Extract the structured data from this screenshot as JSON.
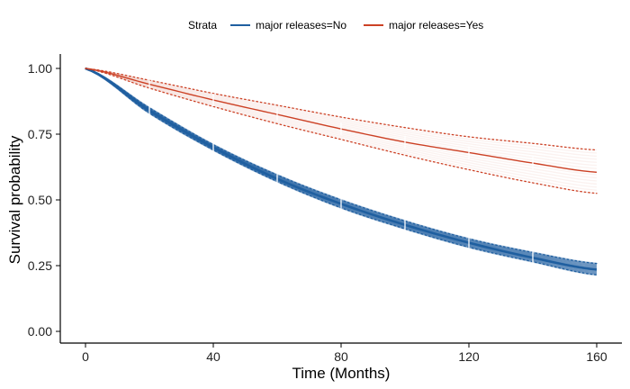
{
  "chart_data": {
    "type": "line",
    "title": "",
    "xlabel": "Time (Months)",
    "ylabel": "Survival probability",
    "xlim": [
      0,
      160
    ],
    "ylim": [
      0,
      1
    ],
    "x_ticks": [
      "0",
      "40",
      "80",
      "120",
      "160"
    ],
    "y_ticks": [
      "0.00",
      "0.25",
      "0.50",
      "0.75",
      "1.00"
    ],
    "grid": false,
    "legend": {
      "title": "Strata",
      "position": "top",
      "entries": [
        "major releases=No",
        "major releases=Yes"
      ]
    },
    "x": [
      0,
      20,
      40,
      60,
      80,
      100,
      120,
      140,
      160
    ],
    "series": [
      {
        "name": "major releases=No",
        "color": "#1f5fa0",
        "values": [
          1.0,
          0.84,
          0.7,
          0.58,
          0.485,
          0.405,
          0.337,
          0.28,
          0.235
        ],
        "lower": [
          1.0,
          0.83,
          0.69,
          0.57,
          0.47,
          0.39,
          0.32,
          0.265,
          0.215
        ],
        "upper": [
          1.0,
          0.85,
          0.71,
          0.595,
          0.5,
          0.42,
          0.352,
          0.3,
          0.258
        ]
      },
      {
        "name": "major releases=Yes",
        "color": "#cc4125",
        "values": [
          1.0,
          0.94,
          0.88,
          0.825,
          0.77,
          0.72,
          0.68,
          0.64,
          0.605
        ],
        "lower": [
          1.0,
          0.925,
          0.855,
          0.79,
          0.73,
          0.67,
          0.615,
          0.565,
          0.525
        ],
        "upper": [
          1.0,
          0.955,
          0.905,
          0.86,
          0.815,
          0.775,
          0.74,
          0.715,
          0.69
        ]
      }
    ]
  }
}
